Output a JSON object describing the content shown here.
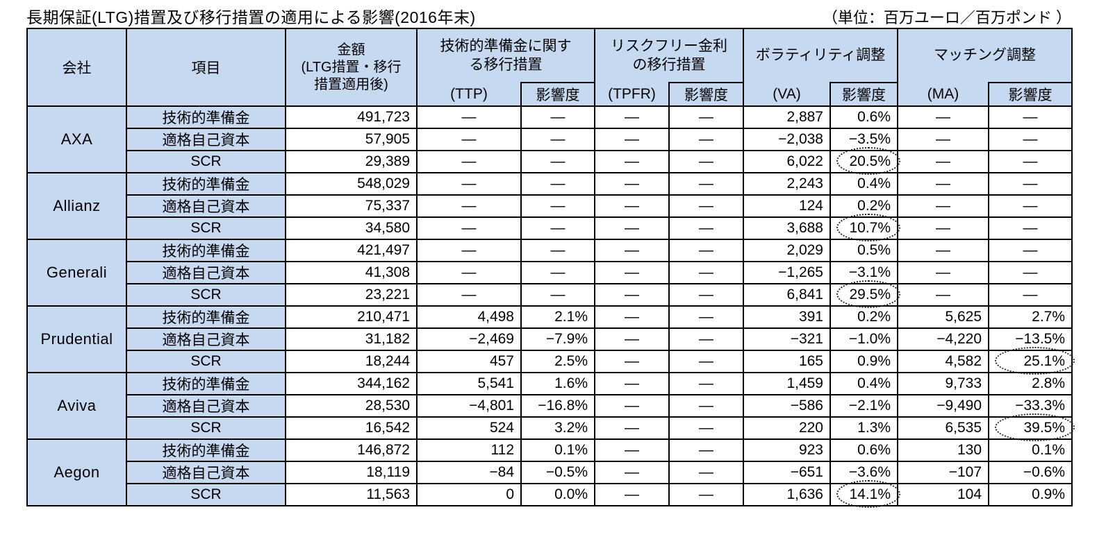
{
  "title": "長期保証(LTG)措置及び移行措置の適用による影響(2016年末)",
  "unit_note": "（単位：百万ユーロ／百万ポンド ）",
  "colors": {
    "header_bg": "#c6d9f1",
    "border": "#000000",
    "highlight_circle": "#222222"
  },
  "table": {
    "header": {
      "company": "会社",
      "item": "項目",
      "amount": "金額\n(LTG措置・移行\n措置適用後)",
      "groups": [
        {
          "label": "技術的準備金に関す\nる移行措置",
          "sub": "(TTP)",
          "impact": "影響度"
        },
        {
          "label": "リスクフリー金利\nの移行措置",
          "sub": "(TPFR)",
          "impact": "影響度"
        },
        {
          "label": "ボラティリティ調整",
          "sub": "(VA)",
          "impact": "影響度"
        },
        {
          "label": "マッチング調整",
          "sub": "(MA)",
          "impact": "影響度"
        }
      ]
    },
    "companies": [
      {
        "name": "AXA",
        "rows": [
          {
            "item": "技術的準備金",
            "cells": [
              "491,723",
              "—",
              "—",
              "—",
              "—",
              "2,887",
              "0.6%",
              "—",
              "—"
            ],
            "circled": null
          },
          {
            "item": "適格自己資本",
            "cells": [
              "57,905",
              "—",
              "—",
              "—",
              "—",
              "−2,038",
              "−3.5%",
              "—",
              "—"
            ],
            "circled": null
          },
          {
            "item": "SCR",
            "cells": [
              "29,389",
              "—",
              "—",
              "—",
              "—",
              "6,022",
              "20.5%",
              "—",
              "—"
            ],
            "circled": 6
          }
        ]
      },
      {
        "name": "Allianz",
        "rows": [
          {
            "item": "技術的準備金",
            "cells": [
              "548,029",
              "—",
              "—",
              "—",
              "—",
              "2,243",
              "0.4%",
              "—",
              "—"
            ],
            "circled": null
          },
          {
            "item": "適格自己資本",
            "cells": [
              "75,337",
              "—",
              "—",
              "—",
              "—",
              "124",
              "0.2%",
              "—",
              "—"
            ],
            "circled": null
          },
          {
            "item": "SCR",
            "cells": [
              "34,580",
              "—",
              "—",
              "—",
              "—",
              "3,688",
              "10.7%",
              "—",
              "—"
            ],
            "circled": 6
          }
        ]
      },
      {
        "name": "Generali",
        "rows": [
          {
            "item": "技術的準備金",
            "cells": [
              "421,497",
              "—",
              "—",
              "—",
              "—",
              "2,029",
              "0.5%",
              "—",
              "—"
            ],
            "circled": null
          },
          {
            "item": "適格自己資本",
            "cells": [
              "41,308",
              "—",
              "—",
              "—",
              "—",
              "−1,265",
              "−3.1%",
              "—",
              "—"
            ],
            "circled": null
          },
          {
            "item": "SCR",
            "cells": [
              "23,221",
              "—",
              "—",
              "—",
              "—",
              "6,841",
              "29.5%",
              "—",
              "—"
            ],
            "circled": 6
          }
        ]
      },
      {
        "name": "Prudential",
        "rows": [
          {
            "item": "技術的準備金",
            "cells": [
              "210,471",
              "4,498",
              "2.1%",
              "—",
              "—",
              "391",
              "0.2%",
              "5,625",
              "2.7%"
            ],
            "circled": null
          },
          {
            "item": "適格自己資本",
            "cells": [
              "31,182",
              "−2,469",
              "−7.9%",
              "—",
              "—",
              "−321",
              "−1.0%",
              "−4,220",
              "−13.5%"
            ],
            "circled": null
          },
          {
            "item": "SCR",
            "cells": [
              "18,244",
              "457",
              "2.5%",
              "—",
              "—",
              "165",
              "0.9%",
              "4,582",
              "25.1%"
            ],
            "circled": 8
          }
        ]
      },
      {
        "name": "Aviva",
        "rows": [
          {
            "item": "技術的準備金",
            "cells": [
              "344,162",
              "5,541",
              "1.6%",
              "—",
              "—",
              "1,459",
              "0.4%",
              "9,733",
              "2.8%"
            ],
            "circled": null
          },
          {
            "item": "適格自己資本",
            "cells": [
              "28,530",
              "−4,801",
              "−16.8%",
              "—",
              "—",
              "−586",
              "−2.1%",
              "−9,490",
              "−33.3%"
            ],
            "circled": null
          },
          {
            "item": "SCR",
            "cells": [
              "16,542",
              "524",
              "3.2%",
              "—",
              "—",
              "220",
              "1.3%",
              "6,535",
              "39.5%"
            ],
            "circled": 8
          }
        ]
      },
      {
        "name": "Aegon",
        "rows": [
          {
            "item": "技術的準備金",
            "cells": [
              "146,872",
              "112",
              "0.1%",
              "—",
              "—",
              "923",
              "0.6%",
              "130",
              "0.1%"
            ],
            "circled": null
          },
          {
            "item": "適格自己資本",
            "cells": [
              "18,119",
              "−84",
              "−0.5%",
              "—",
              "—",
              "−651",
              "−3.6%",
              "−107",
              "−0.6%"
            ],
            "circled": null
          },
          {
            "item": "SCR",
            "cells": [
              "11,563",
              "0",
              "0.0%",
              "—",
              "—",
              "1,636",
              "14.1%",
              "104",
              "0.9%"
            ],
            "circled": 6
          }
        ]
      }
    ]
  }
}
